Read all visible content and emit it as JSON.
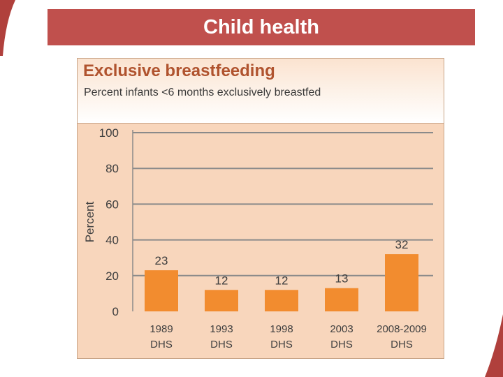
{
  "slide": {
    "title": "Child health"
  },
  "colors": {
    "title_bar": "#c0504d",
    "panel_bg": "#f8d6bc",
    "bar": "#f28c2f",
    "chart_title": "#b0532e",
    "gridline": "#8a8a8a"
  },
  "chart_data": {
    "type": "bar",
    "title": "Exclusive breastfeeding",
    "subtitle": "Percent infants <6 months exclusively breastfed",
    "ylabel": "Percent",
    "xlabel": "",
    "ylim": [
      0,
      100
    ],
    "yticks": [
      0,
      20,
      40,
      60,
      80,
      100
    ],
    "grid": true,
    "categories": [
      [
        "1989",
        "DHS"
      ],
      [
        "1993",
        "DHS"
      ],
      [
        "1998",
        "DHS"
      ],
      [
        "2003",
        "DHS"
      ],
      [
        "2008-2009",
        "DHS"
      ]
    ],
    "values": [
      23,
      12,
      12,
      13,
      32
    ]
  }
}
